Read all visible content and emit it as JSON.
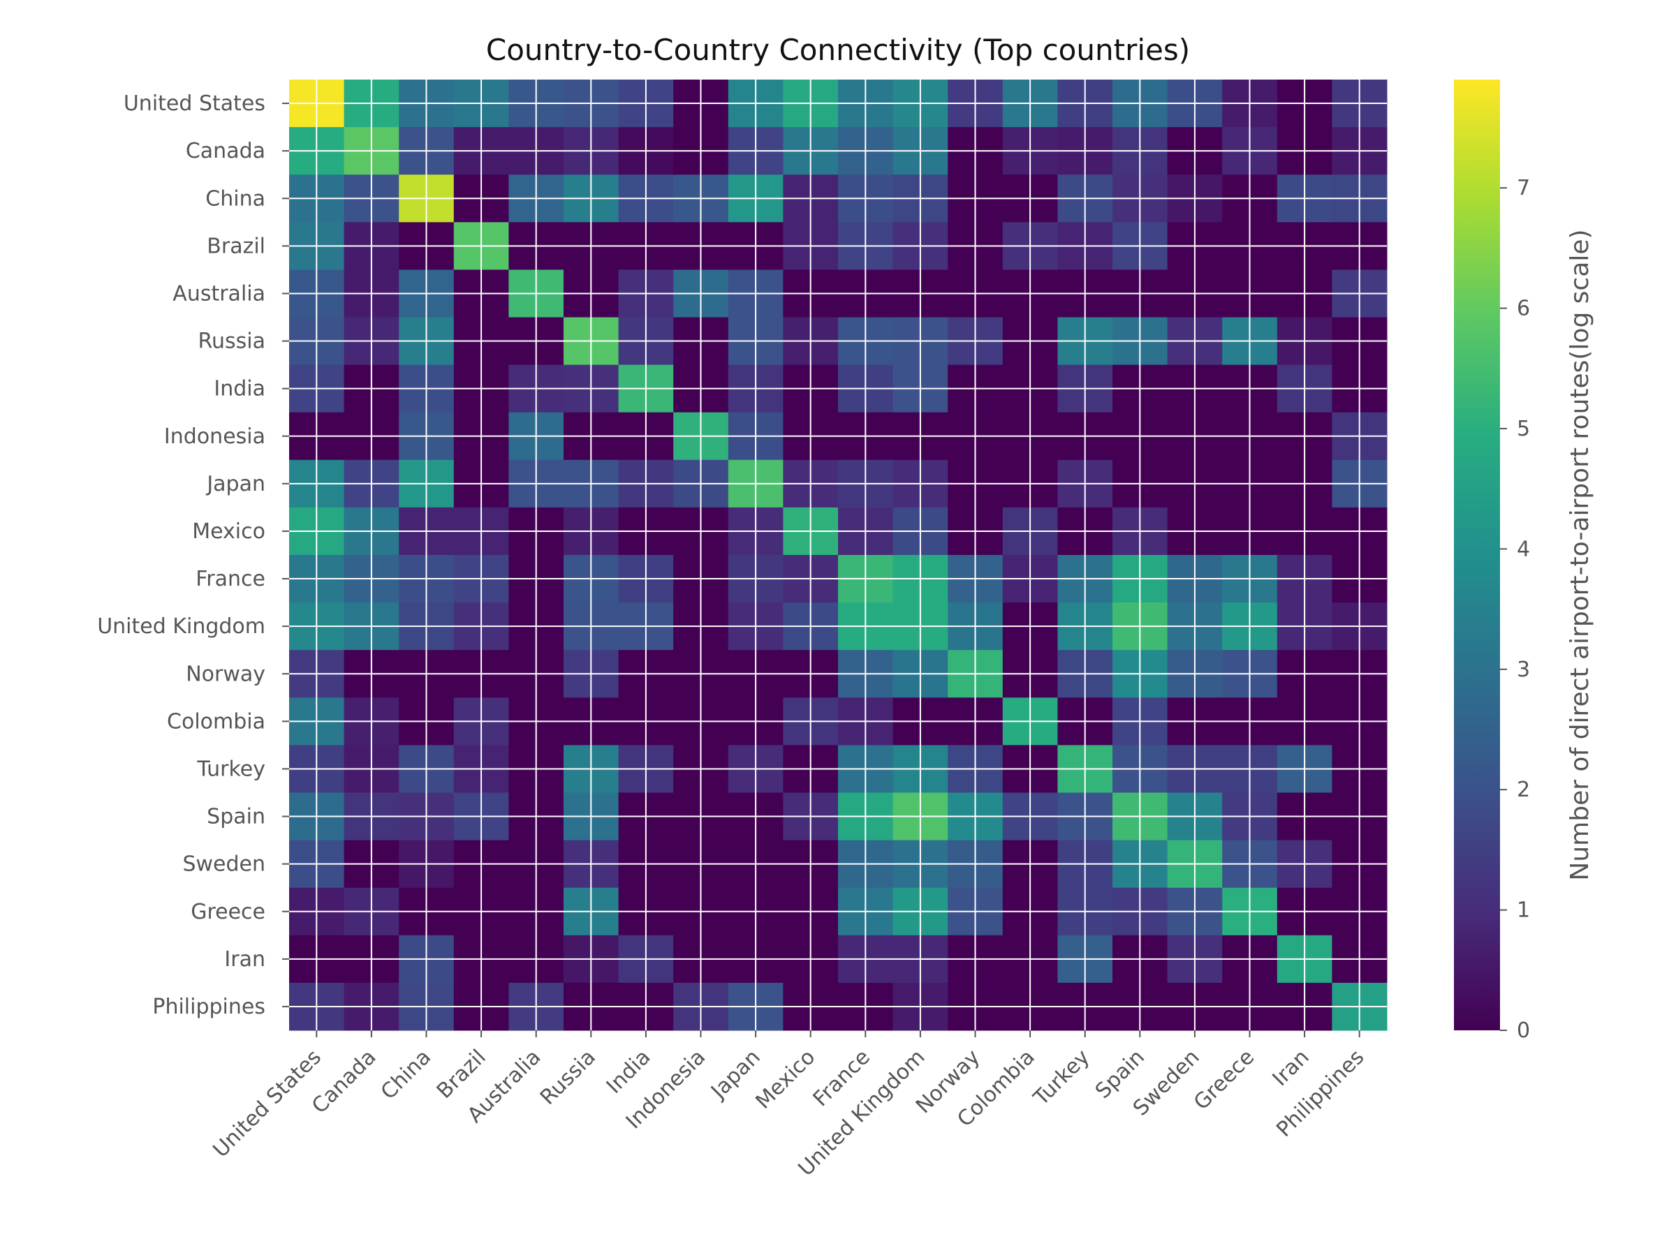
{
  "chart_data": {
    "type": "heatmap",
    "title": "Country-to-Country Connectivity (Top countries)",
    "xlabel": "",
    "ylabel": "",
    "row_labels": [
      "United States",
      "Canada",
      "China",
      "Brazil",
      "Australia",
      "Russia",
      "India",
      "Indonesia",
      "Japan",
      "Mexico",
      "France",
      "United Kingdom",
      "Norway",
      "Colombia",
      "Turkey",
      "Spain",
      "Sweden",
      "Greece",
      "Iran",
      "Philippines"
    ],
    "col_labels": [
      "United States",
      "Canada",
      "China",
      "Brazil",
      "Australia",
      "Russia",
      "India",
      "Indonesia",
      "Japan",
      "Mexico",
      "France",
      "United Kingdom",
      "Norway",
      "Colombia",
      "Turkey",
      "Spain",
      "Sweden",
      "Greece",
      "Iran",
      "Philippines"
    ],
    "values": [
      [
        7.8,
        4.9,
        3.0,
        3.2,
        2.2,
        2.0,
        1.6,
        0.0,
        3.6,
        4.8,
        3.2,
        3.7,
        1.4,
        3.2,
        1.5,
        2.8,
        1.9,
        0.6,
        0.0,
        1.3
      ],
      [
        4.9,
        5.9,
        2.0,
        0.6,
        0.6,
        0.9,
        0.2,
        0.0,
        1.6,
        3.2,
        2.5,
        3.2,
        0.0,
        0.7,
        0.6,
        1.2,
        0.0,
        0.9,
        0.0,
        0.6
      ],
      [
        3.0,
        2.0,
        7.2,
        0.0,
        2.6,
        3.4,
        1.9,
        2.2,
        4.2,
        0.8,
        1.9,
        1.7,
        0.0,
        0.0,
        1.8,
        1.1,
        0.5,
        0.0,
        1.8,
        1.7
      ],
      [
        3.2,
        0.6,
        0.0,
        5.8,
        0.0,
        0.0,
        0.0,
        0.0,
        0.0,
        0.8,
        1.6,
        1.1,
        0.0,
        1.1,
        0.8,
        1.6,
        0.0,
        0.0,
        0.0,
        0.0
      ],
      [
        2.2,
        0.6,
        2.6,
        0.0,
        5.4,
        0.0,
        1.1,
        2.8,
        2.0,
        0.0,
        0.0,
        0.0,
        0.0,
        0.0,
        0.0,
        0.0,
        0.0,
        0.0,
        0.0,
        1.4
      ],
      [
        2.0,
        0.9,
        3.4,
        0.0,
        0.0,
        5.8,
        1.3,
        0.0,
        2.0,
        0.7,
        2.1,
        2.0,
        1.4,
        0.0,
        3.4,
        3.0,
        1.1,
        3.4,
        0.5,
        0.0
      ],
      [
        1.6,
        0.0,
        1.9,
        0.0,
        1.0,
        1.1,
        5.3,
        0.0,
        1.2,
        0.0,
        1.5,
        2.0,
        0.0,
        0.0,
        1.2,
        0.0,
        0.0,
        0.0,
        1.2,
        0.0
      ],
      [
        0.0,
        0.0,
        2.2,
        0.0,
        2.8,
        0.0,
        0.0,
        5.1,
        1.9,
        0.0,
        0.0,
        0.0,
        0.0,
        0.0,
        0.0,
        0.0,
        0.0,
        0.0,
        0.0,
        1.2
      ],
      [
        3.6,
        1.6,
        4.2,
        0.0,
        2.0,
        2.0,
        1.3,
        1.8,
        5.6,
        1.0,
        1.3,
        1.0,
        0.0,
        0.0,
        1.0,
        0.0,
        0.0,
        0.0,
        0.0,
        2.0
      ],
      [
        4.8,
        3.2,
        0.8,
        0.8,
        0.0,
        0.7,
        0.0,
        0.0,
        1.0,
        5.1,
        1.0,
        1.8,
        0.0,
        1.2,
        0.0,
        1.0,
        0.0,
        0.0,
        0.0,
        0.0
      ],
      [
        3.2,
        2.5,
        1.9,
        1.6,
        0.0,
        2.1,
        1.5,
        0.0,
        1.3,
        1.0,
        5.3,
        4.9,
        2.5,
        0.8,
        3.0,
        4.8,
        2.7,
        3.2,
        0.9,
        0.0
      ],
      [
        3.7,
        3.2,
        1.7,
        1.1,
        0.0,
        2.0,
        2.0,
        0.0,
        1.0,
        1.8,
        4.9,
        4.9,
        3.1,
        0.0,
        3.6,
        5.4,
        3.0,
        4.3,
        0.9,
        0.6
      ],
      [
        1.4,
        0.0,
        0.0,
        0.0,
        0.0,
        1.4,
        0.0,
        0.0,
        0.0,
        0.0,
        2.5,
        3.1,
        5.2,
        0.0,
        1.7,
        3.8,
        2.3,
        2.0,
        0.0,
        0.0
      ],
      [
        3.2,
        0.7,
        0.0,
        1.1,
        0.0,
        0.0,
        0.0,
        0.0,
        0.0,
        1.2,
        0.8,
        0.0,
        0.0,
        4.9,
        0.0,
        1.6,
        0.0,
        0.0,
        0.0,
        0.0
      ],
      [
        1.5,
        0.6,
        1.8,
        0.8,
        0.0,
        3.4,
        1.2,
        0.0,
        1.0,
        0.0,
        3.0,
        3.6,
        1.7,
        0.0,
        5.2,
        2.0,
        1.5,
        1.5,
        2.4,
        0.0
      ],
      [
        2.8,
        1.2,
        1.1,
        1.6,
        0.0,
        3.0,
        0.0,
        0.0,
        0.0,
        1.0,
        4.8,
        5.7,
        3.8,
        1.6,
        2.0,
        5.4,
        3.5,
        1.4,
        0.0,
        0.0
      ],
      [
        1.9,
        0.0,
        0.5,
        0.0,
        0.0,
        1.1,
        0.0,
        0.0,
        0.0,
        0.0,
        2.7,
        3.0,
        2.3,
        0.0,
        1.5,
        3.5,
        5.2,
        2.0,
        1.1,
        0.0
      ],
      [
        0.6,
        0.9,
        0.0,
        0.0,
        0.0,
        3.4,
        0.0,
        0.0,
        0.0,
        0.0,
        3.2,
        4.3,
        2.0,
        0.0,
        1.5,
        1.4,
        2.0,
        5.0,
        0.0,
        0.0
      ],
      [
        0.0,
        0.0,
        1.8,
        0.0,
        0.0,
        0.5,
        1.2,
        0.0,
        0.0,
        0.0,
        0.9,
        0.9,
        0.0,
        0.0,
        2.4,
        0.0,
        1.1,
        0.0,
        4.8,
        0.0
      ],
      [
        1.3,
        0.6,
        1.7,
        0.0,
        1.4,
        0.0,
        0.0,
        1.2,
        2.0,
        0.0,
        0.0,
        0.6,
        0.0,
        0.0,
        0.0,
        0.0,
        0.0,
        0.0,
        0.0,
        4.5
      ]
    ],
    "colorbar": {
      "label": "Number of direct airport-to-airport routes(log scale)",
      "min": 0,
      "max": 7.9,
      "ticks": [
        0,
        1,
        2,
        3,
        4,
        5,
        6,
        7
      ],
      "colormap": "viridis"
    },
    "grid": true,
    "grid_color": "#ffffff"
  }
}
